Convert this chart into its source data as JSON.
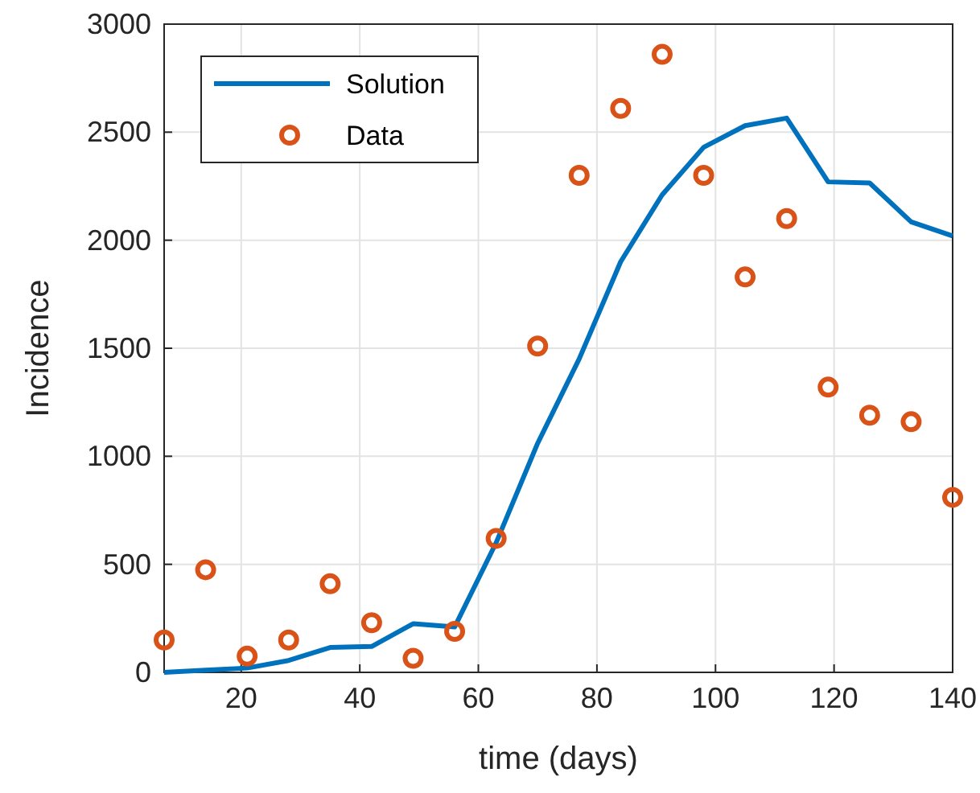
{
  "chart_data": {
    "type": "line",
    "xlabel": "time (days)",
    "ylabel": "Incidence",
    "xlim": [
      7,
      140
    ],
    "xticks": [
      20,
      40,
      60,
      80,
      100,
      120,
      140
    ],
    "ylim": [
      0,
      3000
    ],
    "yticks": [
      0,
      500,
      1000,
      1500,
      2000,
      2500,
      3000
    ],
    "grid": true,
    "legend": "top left",
    "x": [
      7,
      14,
      21,
      28,
      35,
      42,
      49,
      56,
      63,
      70,
      77,
      84,
      91,
      98,
      105,
      112,
      119,
      126,
      133,
      140
    ],
    "series": [
      {
        "name": "Solution",
        "marker": "none",
        "color": "#0072bd",
        "values": [
          0,
          10,
          20,
          55,
          115,
          120,
          225,
          210,
          600,
          1060,
          1450,
          1900,
          2210,
          2430,
          2530,
          2565,
          2270,
          2265,
          2085,
          2020
        ]
      },
      {
        "name": "Data",
        "type": "scatter",
        "marker": "circle",
        "color": "#d95319",
        "values": [
          150,
          475,
          75,
          150,
          410,
          230,
          65,
          190,
          620,
          1510,
          2300,
          2610,
          2860,
          2300,
          1830,
          2100,
          1320,
          1190,
          1160,
          810
        ]
      }
    ]
  }
}
